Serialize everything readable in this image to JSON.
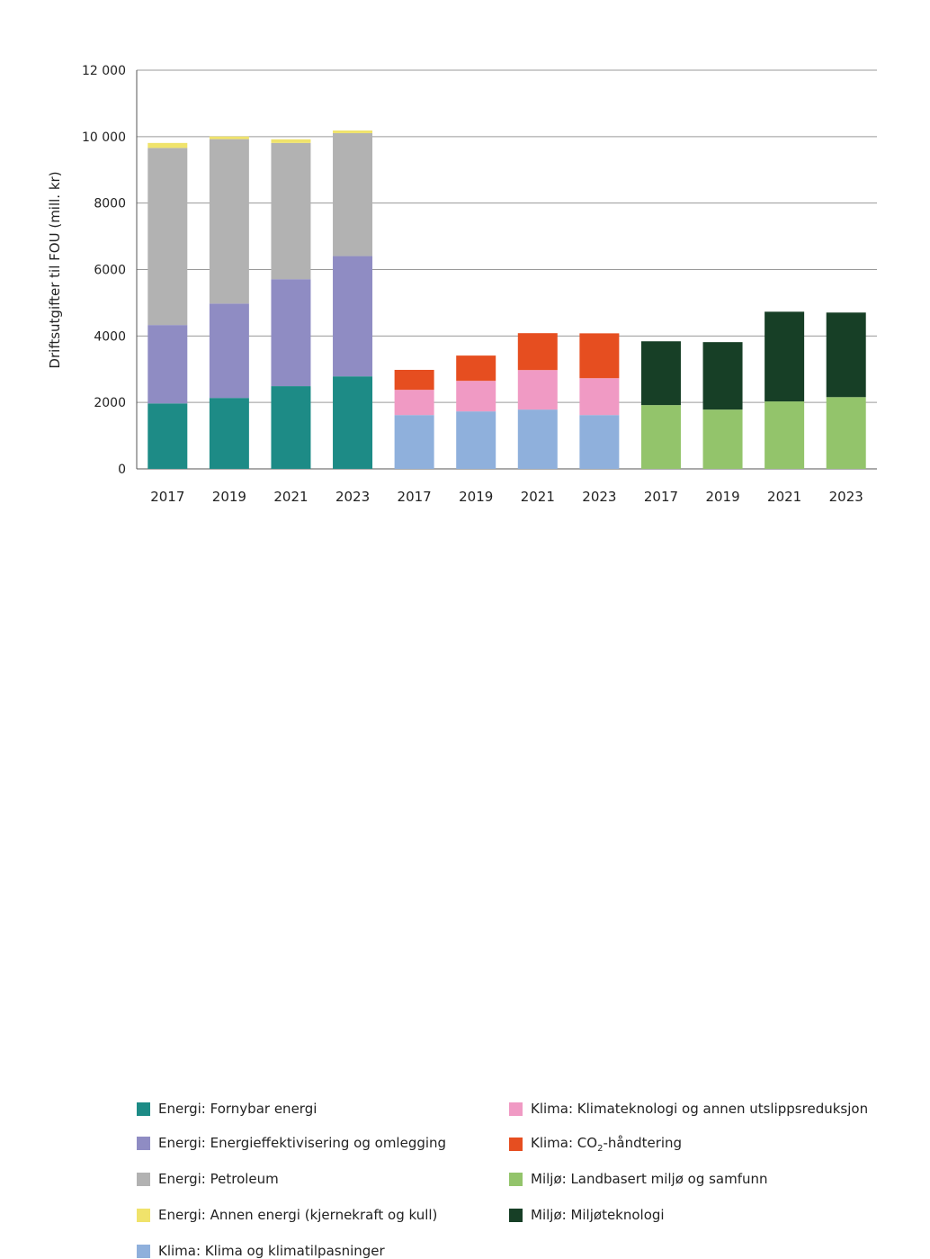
{
  "chart_data": {
    "type": "bar",
    "stacked": true,
    "ylabel": "Driftsutgifter til FOU (mill. kr)",
    "xlabel": "",
    "ylim": [
      0,
      12000
    ],
    "yticks": [
      0,
      2000,
      4000,
      6000,
      8000,
      10000,
      12000
    ],
    "ytick_labels": [
      "0",
      "2000",
      "4000",
      "6000",
      "8000",
      "10 000",
      "12 000"
    ],
    "grid": true,
    "legend_position": "bottom",
    "categories": [
      "2017",
      "2019",
      "2021",
      "2023",
      "2017",
      "2019",
      "2021",
      "2023",
      "2017",
      "2019",
      "2021",
      "2023"
    ],
    "series": [
      {
        "name": "Energi: Fornybar energi",
        "color": "#1d8b86",
        "values": [
          1970,
          2135,
          2490,
          2785,
          0,
          0,
          0,
          0,
          0,
          0,
          0,
          0
        ]
      },
      {
        "name": "Energi: Energieffektivisering og omlegging",
        "color": "#8f8cc3",
        "values": [
          2360,
          2840,
          3220,
          3620,
          0,
          0,
          0,
          0,
          0,
          0,
          0,
          0
        ]
      },
      {
        "name": "Energi: Petroleum",
        "color": "#b2b2b2",
        "values": [
          5330,
          4950,
          4100,
          3700,
          0,
          0,
          0,
          0,
          0,
          0,
          0,
          0
        ]
      },
      {
        "name": "Energi: Annen energi (kjernekraft og kull)",
        "color": "#f0e36b",
        "values": [
          150,
          80,
          110,
          80,
          0,
          0,
          0,
          0,
          0,
          0,
          0,
          0
        ]
      },
      {
        "name": "Klima: Klima og klimatilpasninger",
        "color": "#8fb0dc",
        "values": [
          0,
          0,
          0,
          0,
          1620,
          1730,
          1785,
          1620,
          0,
          0,
          0,
          0
        ]
      },
      {
        "name": "Klima: Klimateknologi og annen utslippsreduksjon",
        "color": "#f09ac4",
        "values": [
          0,
          0,
          0,
          0,
          760,
          920,
          1190,
          1110,
          0,
          0,
          0,
          0
        ]
      },
      {
        "name": "Klima: CO2-håndtering",
        "color": "#e64e20",
        "values": [
          0,
          0,
          0,
          0,
          600,
          760,
          1110,
          1350,
          0,
          0,
          0,
          0
        ]
      },
      {
        "name": "Miljø: Landbasert miljø og samfunn",
        "color": "#93c46b",
        "values": [
          0,
          0,
          0,
          0,
          0,
          0,
          0,
          0,
          1920,
          1785,
          2030,
          2160
        ]
      },
      {
        "name": "Miljø: Miljøteknologi",
        "color": "#173f26",
        "values": [
          0,
          0,
          0,
          0,
          0,
          0,
          0,
          0,
          1920,
          2030,
          2700,
          2545
        ]
      }
    ]
  }
}
